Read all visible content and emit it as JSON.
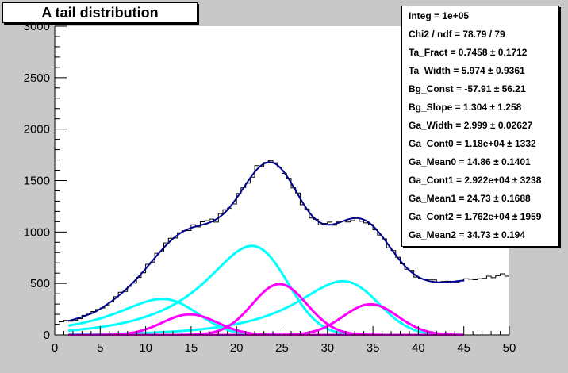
{
  "chart_data": {
    "type": "line",
    "title": "A tail distribution",
    "xlim": [
      0,
      50
    ],
    "ylim": [
      0,
      3000
    ],
    "x_ticks": [
      0,
      5,
      10,
      15,
      20,
      25,
      30,
      35,
      40,
      45,
      50
    ],
    "y_ticks": [
      0,
      500,
      1000,
      1500,
      2000,
      2500,
      3000
    ],
    "fit": {
      "ta_fract": 0.7458,
      "ta_width": 5.974,
      "bg_const": -57.91,
      "bg_slope": 1.304,
      "ga_width": 2.999,
      "ga_cont0": 11800,
      "ga_mean0": 14.86,
      "ga_cont1": 29220,
      "ga_mean1": 24.73,
      "ga_cont2": 17620,
      "ga_mean2": 34.73
    },
    "stats": [
      "Integ =  1e+05",
      "Chi2 / ndf = 78.79 / 79",
      "Ta_Fract = 0.7458 ± 0.1712",
      "Ta_Width = 5.974 ± 0.9361",
      "Bg_Const = -57.91 ± 56.21",
      "Bg_Slope = 1.304 ± 1.258",
      "Ga_Width = 2.999 ± 0.02627",
      "Ga_Cont0 = 1.18e+04 ±  1332",
      "Ga_Mean0 = 14.86 ± 0.1401",
      "Ga_Cont1 = 2.922e+04 ±  3238",
      "Ga_Mean1 = 24.73 ± 0.1688",
      "Ga_Cont2 = 1.762e+04 ±  1959",
      "Ga_Mean2 = 34.73 ± 0.194"
    ],
    "colors": {
      "frame": "#c8c8c8",
      "histogram": "#000000",
      "total_fit": "#00008b",
      "gaussian": "#ff00ff",
      "tail": "#00ffff"
    }
  }
}
